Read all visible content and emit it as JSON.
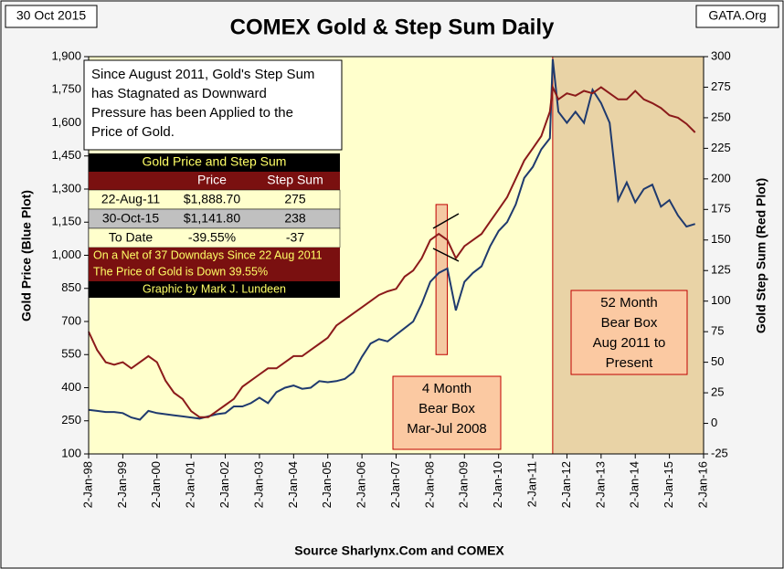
{
  "header": {
    "date": "30 Oct 2015",
    "source": "GATA.Org"
  },
  "chart_data": {
    "type": "line",
    "title": "COMEX Gold & Step Sum Daily",
    "x_label": "Source Sharlynx.Com and COMEX",
    "y_label": "Gold Price    (Blue Plot)",
    "y2_label": "Gold Step Sum    (Red Plot)",
    "xlim": [
      "1998-01",
      "2016-01"
    ],
    "xticks": [
      {
        "value": "1998-01",
        "label": "2-Jan-98"
      },
      {
        "value": "1999-01",
        "label": "2-Jan-99"
      },
      {
        "value": "2000-01",
        "label": "2-Jan-00"
      },
      {
        "value": "2001-01",
        "label": "2-Jan-01"
      },
      {
        "value": "2002-01",
        "label": "2-Jan-02"
      },
      {
        "value": "2003-01",
        "label": "2-Jan-03"
      },
      {
        "value": "2004-01",
        "label": "2-Jan-04"
      },
      {
        "value": "2005-01",
        "label": "2-Jan-05"
      },
      {
        "value": "2006-01",
        "label": "2-Jan-06"
      },
      {
        "value": "2007-01",
        "label": "2-Jan-07"
      },
      {
        "value": "2008-01",
        "label": "2-Jan-08"
      },
      {
        "value": "2009-01",
        "label": "2-Jan-09"
      },
      {
        "value": "2010-01",
        "label": "2-Jan-10"
      },
      {
        "value": "2011-01",
        "label": "2-Jan-11"
      },
      {
        "value": "2012-01",
        "label": "2-Jan-12"
      },
      {
        "value": "2013-01",
        "label": "2-Jan-13"
      },
      {
        "value": "2014-01",
        "label": "2-Jan-14"
      },
      {
        "value": "2015-01",
        "label": "2-Jan-15"
      },
      {
        "value": "2016-01",
        "label": "2-Jan-16"
      }
    ],
    "ylim": [
      100,
      1900
    ],
    "yticks": [
      100,
      250,
      400,
      550,
      700,
      850,
      {
        "value": 1000,
        "label": "1,000"
      },
      {
        "value": 1150,
        "label": "1,150"
      },
      {
        "value": 1300,
        "label": "1,300"
      },
      {
        "value": 1450,
        "label": "1,450"
      },
      {
        "value": 1600,
        "label": "1,600"
      },
      {
        "value": 1750,
        "label": "1,750"
      },
      {
        "value": 1900,
        "label": "1,900"
      }
    ],
    "y2lim": [
      -25,
      300
    ],
    "y2ticks": [
      -25,
      0,
      25,
      50,
      75,
      100,
      125,
      150,
      175,
      200,
      225,
      250,
      275,
      300
    ],
    "x": [
      "1998-01",
      "1998-04",
      "1998-07",
      "1998-10",
      "1999-01",
      "1999-04",
      "1999-07",
      "1999-10",
      "2000-01",
      "2000-04",
      "2000-07",
      "2000-10",
      "2001-01",
      "2001-04",
      "2001-07",
      "2001-10",
      "2002-01",
      "2002-04",
      "2002-07",
      "2002-10",
      "2003-01",
      "2003-04",
      "2003-07",
      "2003-10",
      "2004-01",
      "2004-04",
      "2004-07",
      "2004-10",
      "2005-01",
      "2005-04",
      "2005-07",
      "2005-10",
      "2006-01",
      "2006-04",
      "2006-07",
      "2006-10",
      "2007-01",
      "2007-04",
      "2007-07",
      "2007-10",
      "2008-01",
      "2008-04",
      "2008-07",
      "2008-10",
      "2009-01",
      "2009-04",
      "2009-07",
      "2009-10",
      "2010-01",
      "2010-04",
      "2010-07",
      "2010-10",
      "2011-01",
      "2011-04",
      "2011-07",
      "2011-08",
      "2011-10",
      "2012-01",
      "2012-04",
      "2012-07",
      "2012-10",
      "2013-01",
      "2013-04",
      "2013-07",
      "2013-10",
      "2014-01",
      "2014-04",
      "2014-07",
      "2014-10",
      "2015-01",
      "2015-04",
      "2015-07",
      "2015-10"
    ],
    "series": [
      {
        "name": "Price",
        "color": "#1f3a6e",
        "axis": "y",
        "values": [
          300,
          295,
          290,
          290,
          285,
          265,
          255,
          295,
          285,
          280,
          275,
          270,
          265,
          260,
          270,
          280,
          285,
          315,
          315,
          330,
          355,
          330,
          380,
          400,
          410,
          395,
          400,
          430,
          425,
          430,
          440,
          470,
          540,
          600,
          620,
          610,
          640,
          670,
          700,
          780,
          880,
          920,
          940,
          750,
          880,
          920,
          950,
          1040,
          1110,
          1150,
          1230,
          1350,
          1400,
          1480,
          1530,
          1888.7,
          1650,
          1600,
          1650,
          1600,
          1750,
          1690,
          1600,
          1250,
          1330,
          1240,
          1300,
          1320,
          1220,
          1250,
          1180,
          1130,
          1141.8
        ]
      },
      {
        "name": "Step Sum",
        "color": "#8b1a1a",
        "axis": "y2",
        "values": [
          75,
          60,
          50,
          48,
          50,
          45,
          50,
          55,
          50,
          35,
          25,
          20,
          10,
          5,
          5,
          10,
          15,
          20,
          30,
          35,
          40,
          45,
          45,
          50,
          55,
          55,
          60,
          65,
          70,
          80,
          85,
          90,
          95,
          100,
          105,
          108,
          110,
          120,
          125,
          135,
          150,
          155,
          150,
          135,
          145,
          150,
          155,
          165,
          175,
          185,
          200,
          215,
          225,
          235,
          255,
          275,
          265,
          270,
          268,
          272,
          270,
          275,
          270,
          265,
          265,
          272,
          265,
          262,
          258,
          252,
          250,
          245,
          238
        ]
      }
    ],
    "bear_boxes": [
      {
        "from": "2008-03",
        "to": "2008-07",
        "ylim": [
          550,
          1230
        ],
        "label": [
          "4 Month",
          "Bear Box",
          "Mar-Jul 2008"
        ]
      },
      {
        "from": "2011-08",
        "to": "2016-01",
        "label": [
          "52 Month",
          "Bear Box",
          "Aug 2011 to",
          "Present"
        ]
      }
    ],
    "note": [
      "Since August 2011, Gold's Step Sum",
      "has Stagnated as Downward",
      "Pressure has been Applied to the",
      "Price of Gold."
    ]
  },
  "table": {
    "title": "Gold Price and Step Sum",
    "rows": [
      [
        "22-Aug-11",
        "$1,888.70",
        "275"
      ],
      [
        "30-Oct-15",
        "$1,141.80",
        "238"
      ],
      [
        "To Date",
        "-39.55%",
        "-37"
      ]
    ],
    "notes": [
      "On a Net of 37 Downdays Since 22 Aug 2011",
      "The Price of Gold is Down 39.55%"
    ],
    "credit": "Graphic by Mark J. Lundeen"
  }
}
